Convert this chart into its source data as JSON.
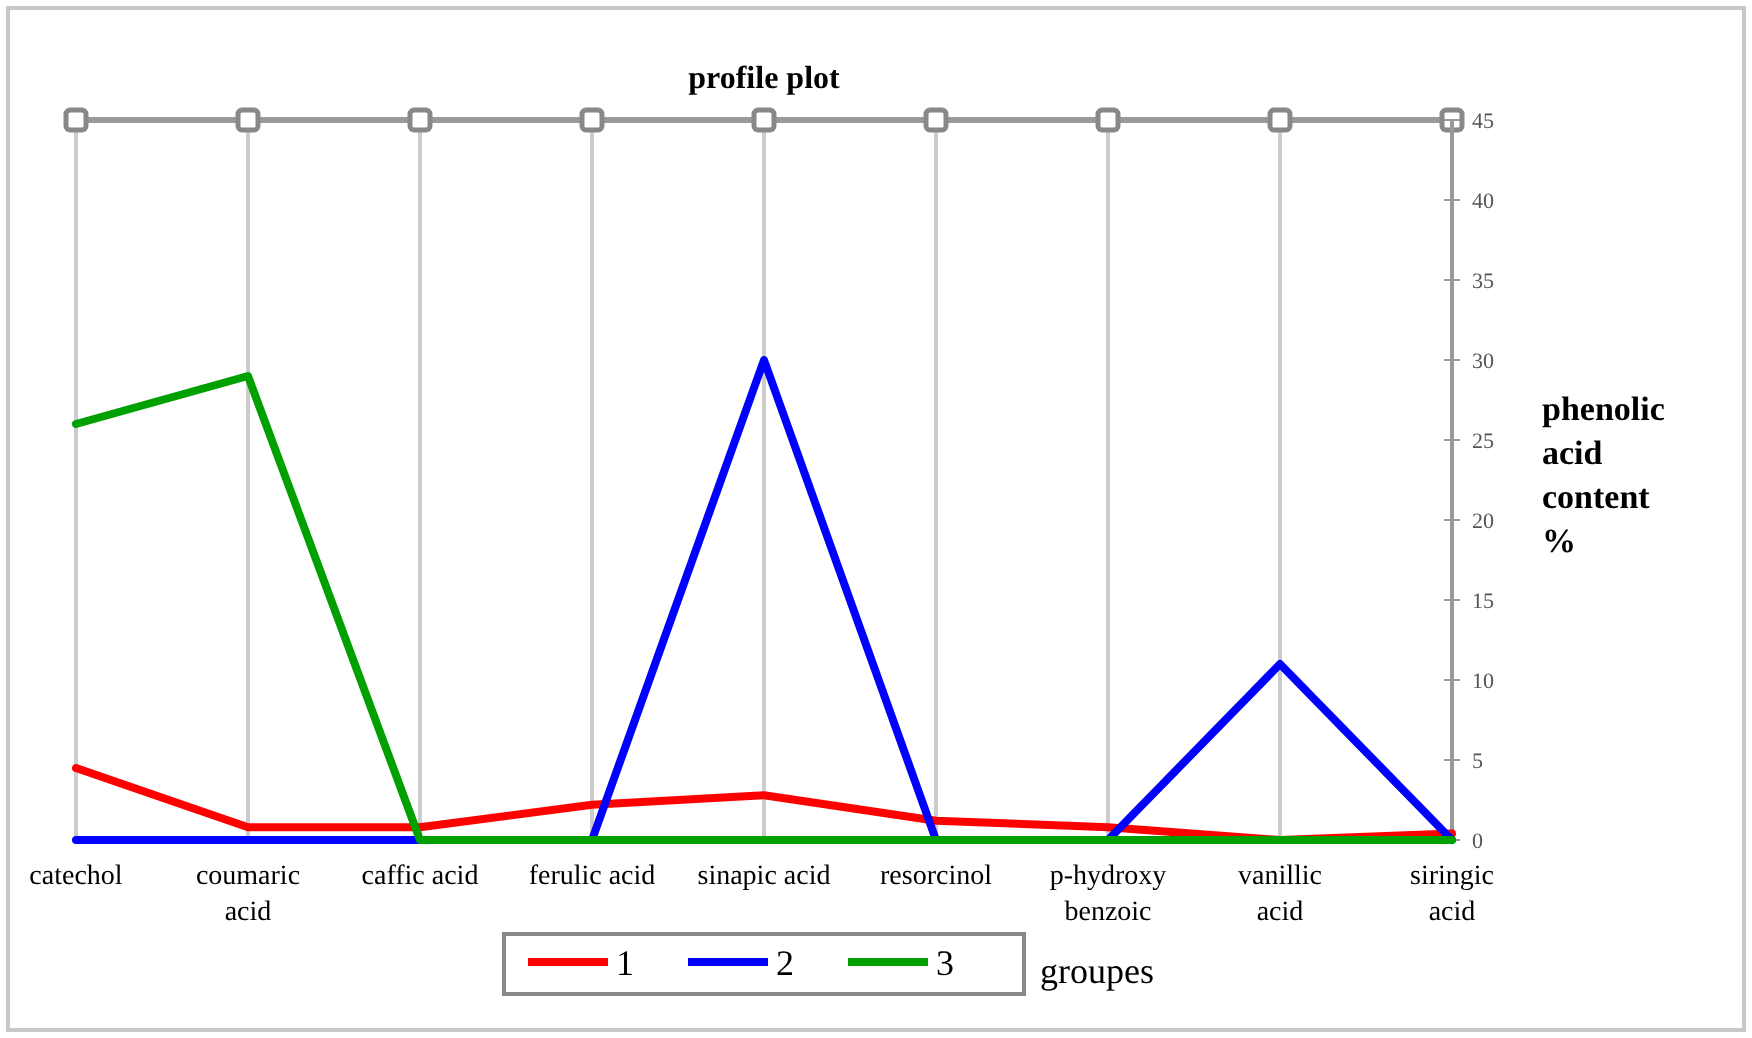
{
  "chart_data": {
    "type": "line",
    "title": "profile plot",
    "ylabel": "phenolic acid content %",
    "legend_title": "groupes",
    "categories": [
      "catechol",
      "coumaric acid",
      "caffic acid",
      "ferulic acid",
      "sinapic acid",
      "resorcinol",
      "p-hydroxy benzoic",
      "vanillic acid",
      "siringic acid"
    ],
    "series": [
      {
        "name": "1",
        "color": "#ff0000",
        "values": [
          4.5,
          0.8,
          0.8,
          2.2,
          2.8,
          1.2,
          0.8,
          0,
          0.4
        ]
      },
      {
        "name": "2",
        "color": "#0000ff",
        "values": [
          0,
          0,
          0,
          0,
          30,
          0,
          0,
          11,
          0
        ]
      },
      {
        "name": "3",
        "color": "#00a000",
        "values": [
          26,
          29,
          0,
          0,
          0,
          0,
          0,
          0,
          0
        ]
      }
    ],
    "ylim": [
      0,
      45
    ],
    "yticks": [
      0,
      5,
      10,
      15,
      20,
      25,
      30,
      35,
      40,
      45
    ],
    "grid": "x",
    "legend": "bottom",
    "marker": "none",
    "line_style": "solid"
  }
}
